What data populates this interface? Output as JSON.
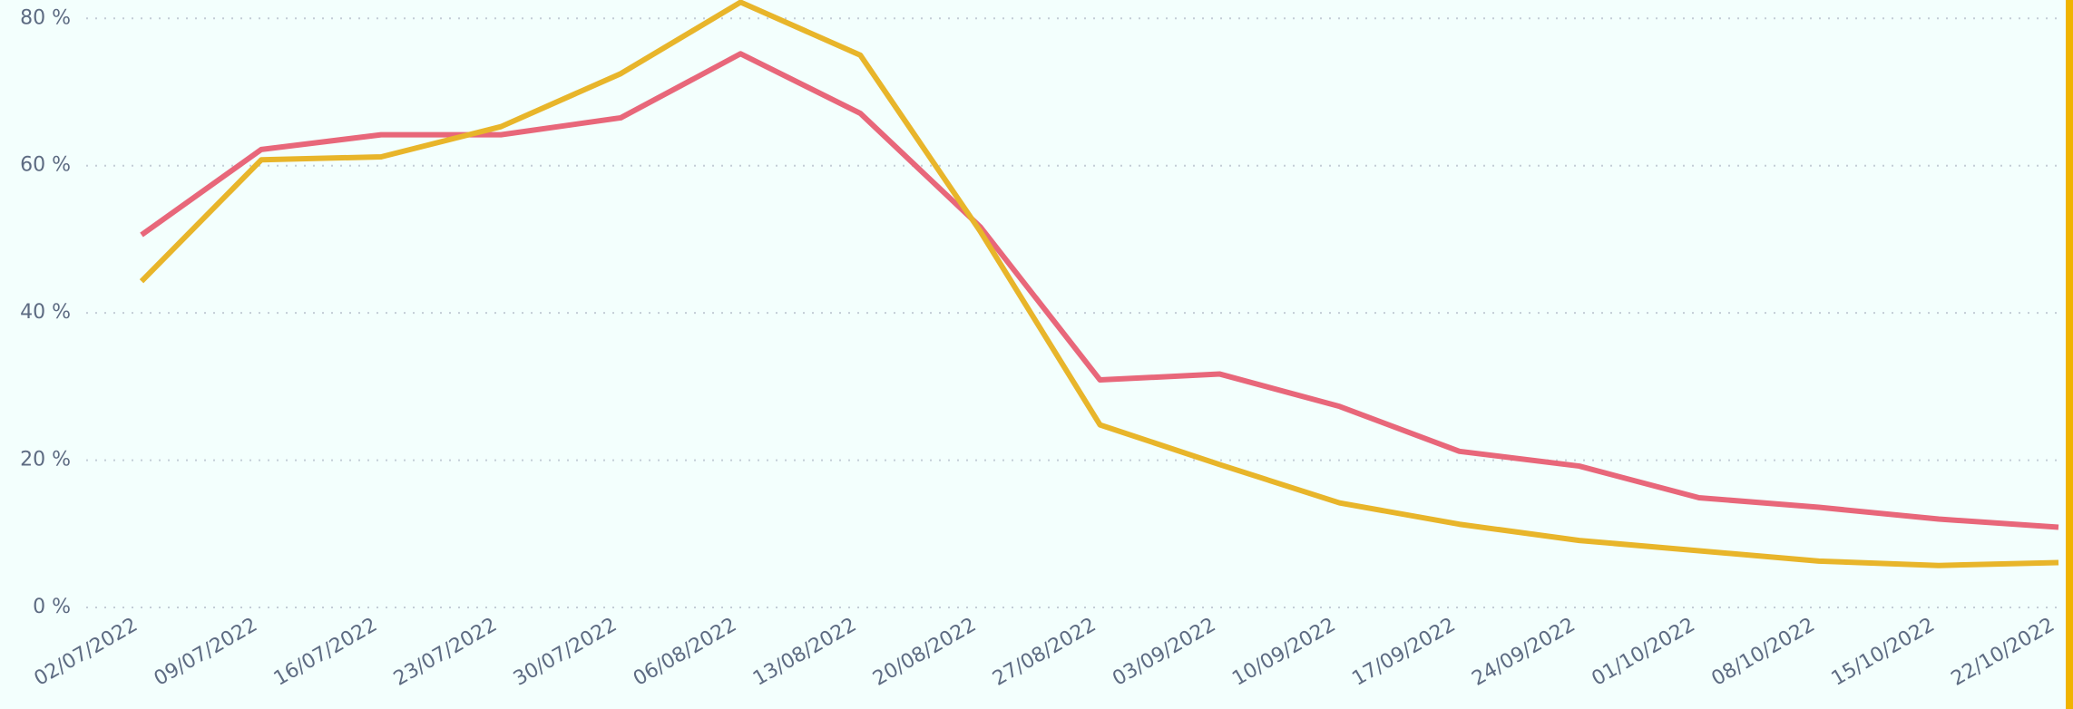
{
  "chart_data": {
    "type": "line",
    "categories": [
      "02/07/2022",
      "09/07/2022",
      "16/07/2022",
      "23/07/2022",
      "30/07/2022",
      "06/08/2022",
      "13/08/2022",
      "20/08/2022",
      "27/08/2022",
      "03/09/2022",
      "10/09/2022",
      "17/09/2022",
      "24/09/2022",
      "01/10/2022",
      "08/10/2022",
      "15/10/2022",
      "22/10/2022"
    ],
    "series": [
      {
        "color": "#e8677a",
        "values": [
          50.6,
          62.2,
          64.2,
          64.2,
          66.5,
          75.2,
          67.1,
          51.7,
          30.9,
          31.7,
          27.3,
          21.2,
          19.2,
          14.9,
          13.6,
          12.0,
          10.9
        ]
      },
      {
        "color": "#e8b52a",
        "values": [
          44.3,
          60.8,
          61.2,
          65.3,
          72.5,
          82.2,
          75.0,
          51.1,
          24.8,
          19.4,
          14.2,
          11.3,
          9.1,
          7.7,
          6.3,
          5.7,
          6.1
        ]
      }
    ],
    "ylim": [
      0,
      82.5
    ],
    "yticks": [
      {
        "value": 0,
        "label": "0 %"
      },
      {
        "value": 20,
        "label": "20 %"
      },
      {
        "value": 40,
        "label": "40 %"
      },
      {
        "value": 60,
        "label": "60 %"
      },
      {
        "value": 80,
        "label": "80 %"
      }
    ],
    "grid": true
  }
}
